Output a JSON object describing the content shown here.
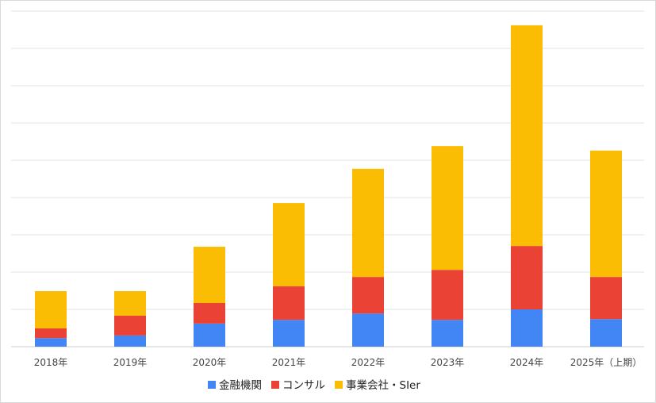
{
  "chart_data": {
    "type": "bar",
    "stacked": true,
    "title": "",
    "xlabel": "",
    "ylabel": "",
    "y_unit_note": "",
    "ylim": [
      0,
      9
    ],
    "grid": true,
    "legend_position": "bottom",
    "categories": [
      "2018年",
      "2019年",
      "2020年",
      "2021年",
      "2022年",
      "2023年",
      "2024年",
      "2025年（上期）"
    ],
    "series": [
      {
        "name": "金融機関",
        "color": "#4285f4",
        "values": [
          0.23,
          0.3,
          0.62,
          0.72,
          0.89,
          0.72,
          1.0,
          0.74
        ]
      },
      {
        "name": "コンサル",
        "color": "#ea4335",
        "values": [
          0.26,
          0.53,
          0.55,
          0.9,
          0.98,
          1.34,
          1.7,
          1.13
        ]
      },
      {
        "name": "事業会社・SIer",
        "color": "#fbbc04",
        "values": [
          1.0,
          0.66,
          1.51,
          2.23,
          2.9,
          3.32,
          5.92,
          3.39
        ]
      }
    ]
  }
}
